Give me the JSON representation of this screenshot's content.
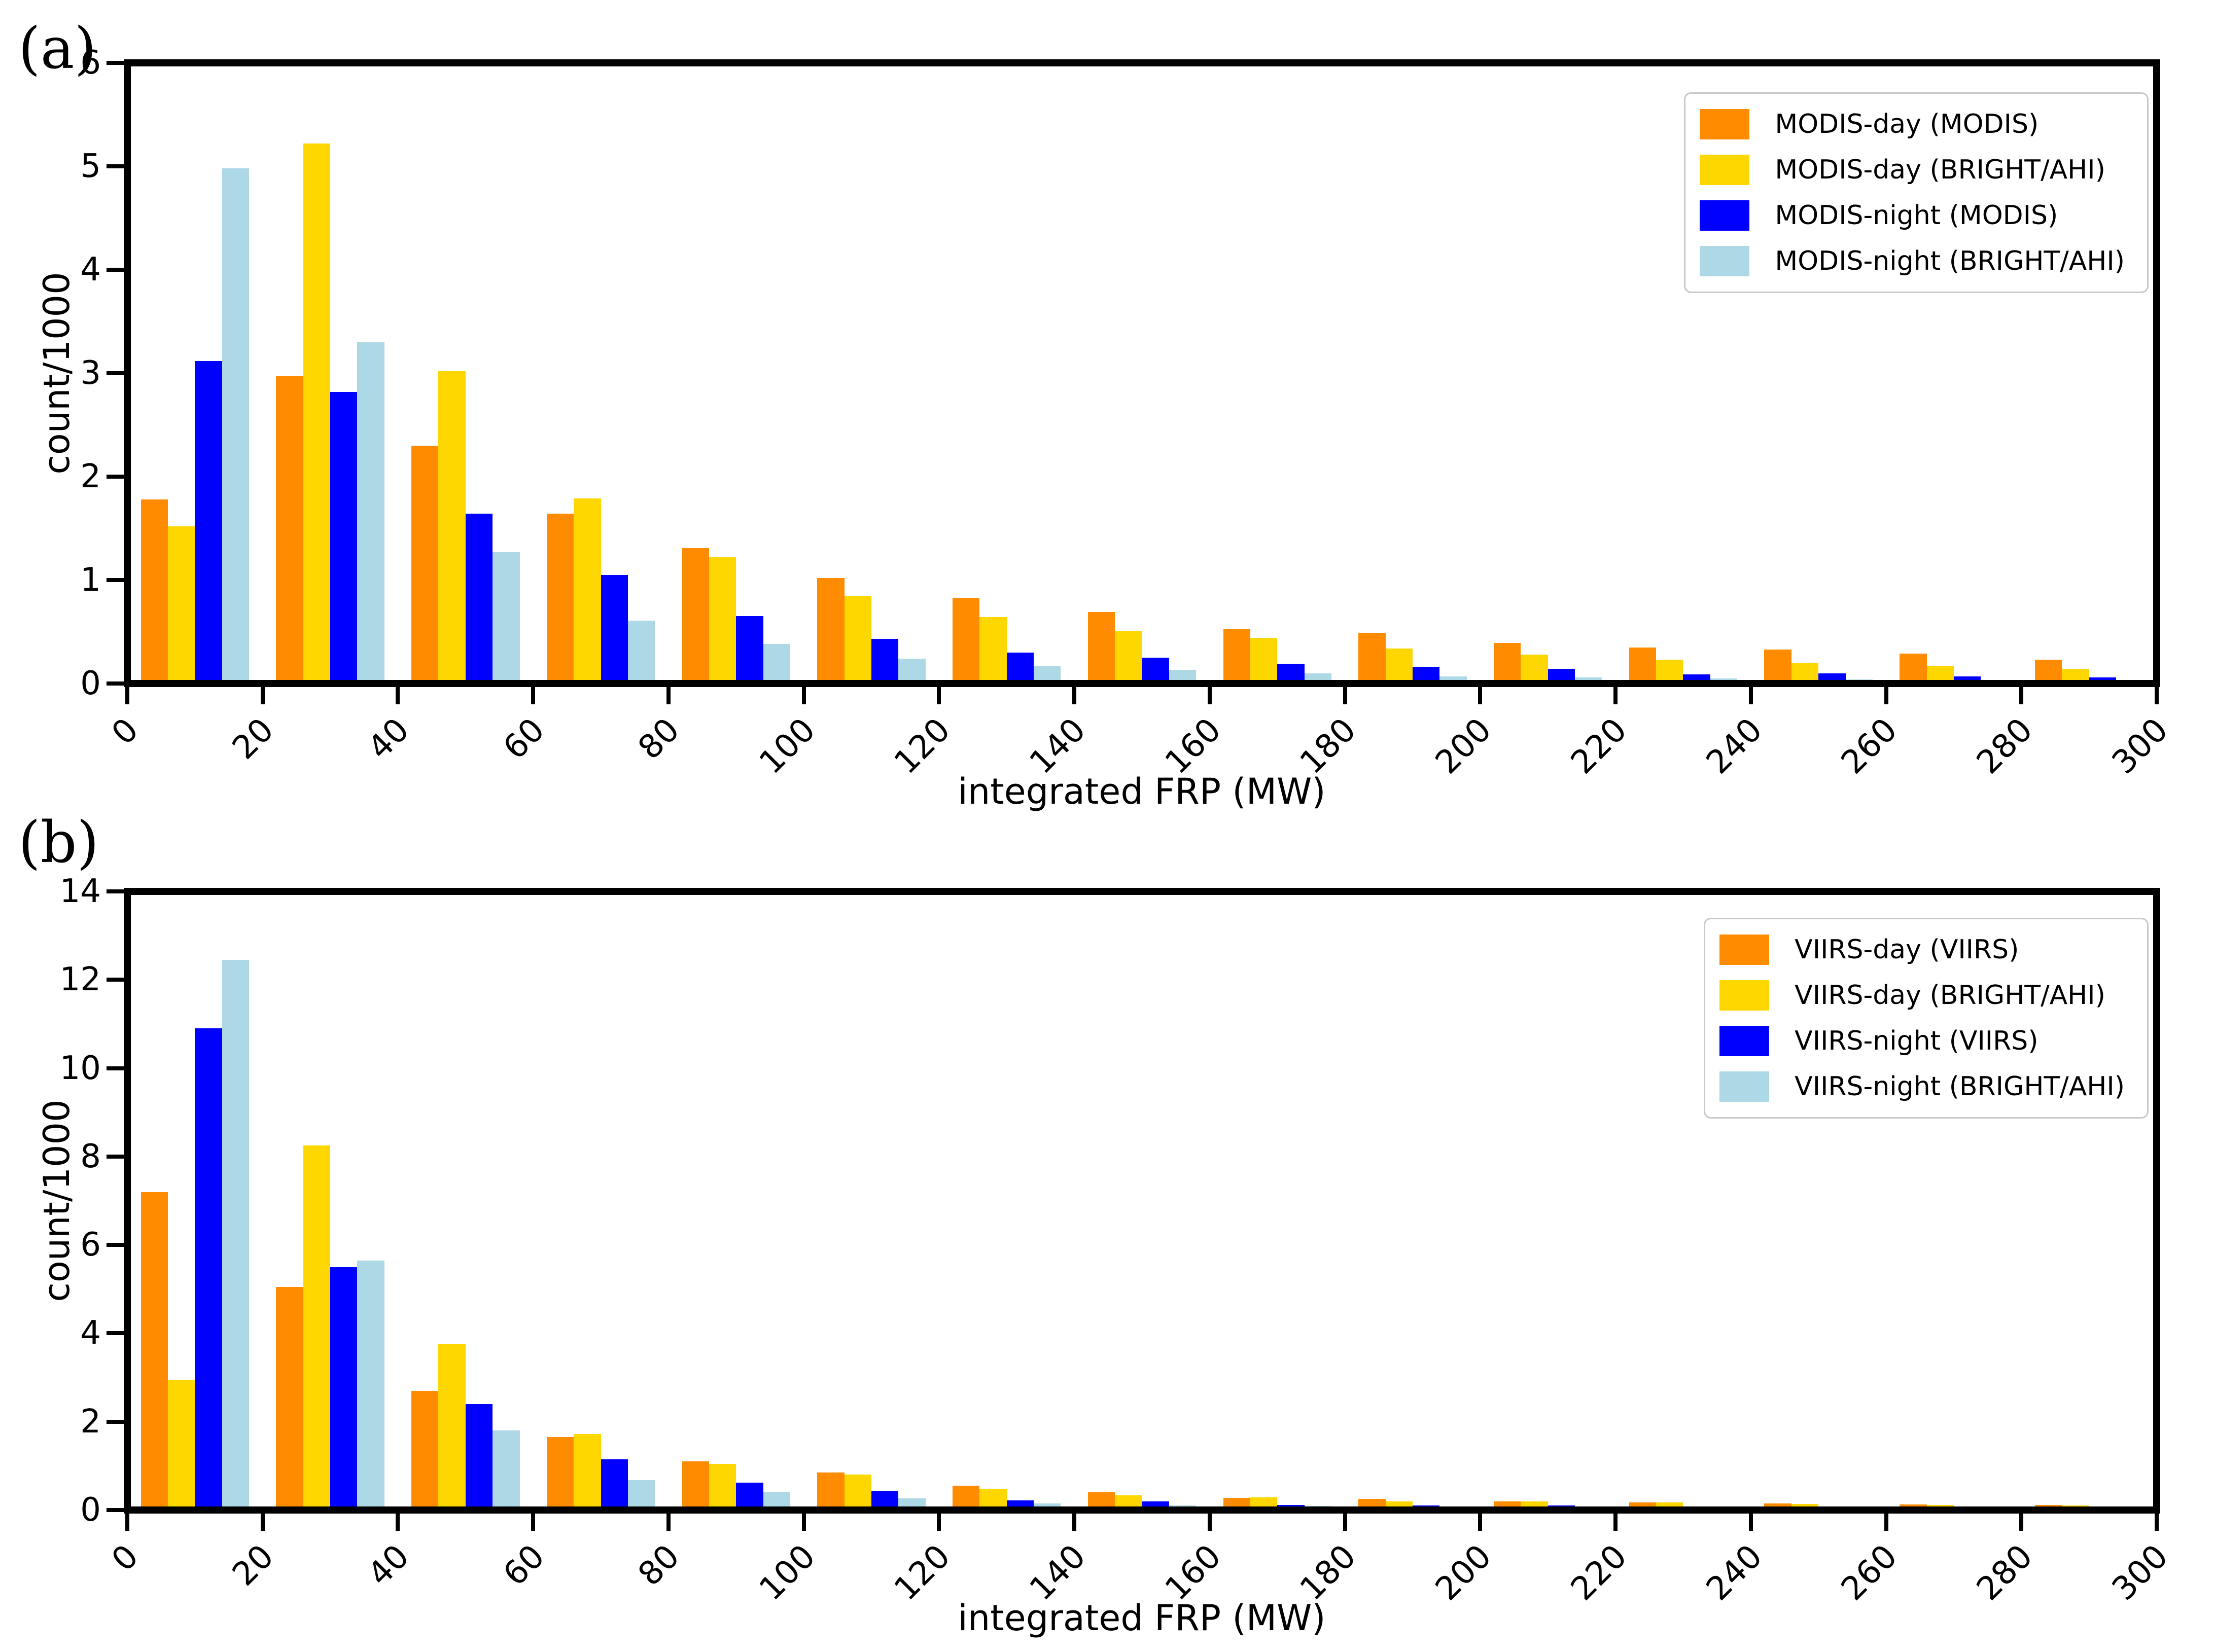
{
  "chart_data": [
    {
      "type": "bar",
      "panel_tag": "(a)",
      "xlabel": "integrated FRP (MW)",
      "ylabel": "count/1000",
      "xlim": [
        0,
        300
      ],
      "ylim": [
        0,
        6
      ],
      "xticks": [
        0,
        20,
        40,
        60,
        80,
        100,
        120,
        140,
        160,
        180,
        200,
        220,
        240,
        260,
        280,
        300
      ],
      "yticks": [
        0,
        1,
        2,
        3,
        4,
        5,
        6
      ],
      "grid": false,
      "legend_position": "upper-right",
      "bin_width_mw": 20,
      "categories": [
        "0-20",
        "20-40",
        "40-60",
        "60-80",
        "80-100",
        "100-120",
        "120-140",
        "140-160",
        "160-180",
        "180-200",
        "200-220",
        "220-240",
        "240-260",
        "260-280",
        "280-300"
      ],
      "series": [
        {
          "name": "MODIS-day (MODIS)",
          "color": "#FF8C00",
          "values": [
            1.78,
            2.97,
            2.3,
            1.64,
            1.31,
            1.02,
            0.83,
            0.69,
            0.53,
            0.49,
            0.39,
            0.35,
            0.33,
            0.29,
            0.23
          ]
        },
        {
          "name": "MODIS-day (BRIGHT/AHI)",
          "color": "#FFD700",
          "values": [
            1.52,
            5.22,
            3.02,
            1.79,
            1.22,
            0.85,
            0.64,
            0.51,
            0.44,
            0.34,
            0.28,
            0.23,
            0.2,
            0.17,
            0.14
          ]
        },
        {
          "name": "MODIS-night (MODIS)",
          "color": "#0000FF",
          "values": [
            3.12,
            2.82,
            1.64,
            1.05,
            0.65,
            0.43,
            0.3,
            0.25,
            0.19,
            0.16,
            0.14,
            0.09,
            0.1,
            0.07,
            0.06
          ]
        },
        {
          "name": "MODIS-night (BRIGHT/AHI)",
          "color": "#ADD8E6",
          "values": [
            4.98,
            3.3,
            1.27,
            0.61,
            0.38,
            0.24,
            0.17,
            0.13,
            0.1,
            0.07,
            0.06,
            0.05,
            0.04,
            0.03,
            0.02
          ]
        }
      ]
    },
    {
      "type": "bar",
      "panel_tag": "(b)",
      "xlabel": "integrated FRP (MW)",
      "ylabel": "count/1000",
      "xlim": [
        0,
        300
      ],
      "ylim": [
        0,
        14
      ],
      "xticks": [
        0,
        20,
        40,
        60,
        80,
        100,
        120,
        140,
        160,
        180,
        200,
        220,
        240,
        260,
        280,
        300
      ],
      "yticks": [
        0,
        2,
        4,
        6,
        8,
        10,
        12,
        14
      ],
      "grid": false,
      "legend_position": "upper-right",
      "bin_width_mw": 20,
      "categories": [
        "0-20",
        "20-40",
        "40-60",
        "60-80",
        "80-100",
        "100-120",
        "120-140",
        "140-160",
        "160-180",
        "180-200",
        "200-220",
        "220-240",
        "240-260",
        "260-280",
        "280-300"
      ],
      "series": [
        {
          "name": "VIIRS-day (VIIRS)",
          "color": "#FF8C00",
          "values": [
            7.2,
            5.05,
            2.7,
            1.65,
            1.1,
            0.85,
            0.55,
            0.4,
            0.28,
            0.25,
            0.2,
            0.17,
            0.15,
            0.13,
            0.12
          ]
        },
        {
          "name": "VIIRS-day (BRIGHT/AHI)",
          "color": "#FFD700",
          "values": [
            2.95,
            8.25,
            3.75,
            1.72,
            1.05,
            0.8,
            0.48,
            0.33,
            0.29,
            0.19,
            0.19,
            0.17,
            0.14,
            0.12,
            0.1
          ]
        },
        {
          "name": "VIIRS-night (VIIRS)",
          "color": "#0000FF",
          "values": [
            10.9,
            5.5,
            2.4,
            1.15,
            0.62,
            0.42,
            0.22,
            0.19,
            0.12,
            0.1,
            0.1,
            0.08,
            0.07,
            0.05,
            0.04
          ]
        },
        {
          "name": "VIIRS-night (BRIGHT/AHI)",
          "color": "#ADD8E6",
          "values": [
            12.45,
            5.65,
            1.8,
            0.68,
            0.4,
            0.26,
            0.15,
            0.1,
            0.09,
            0.07,
            0.06,
            0.05,
            0.04,
            0.03,
            0.02
          ]
        }
      ]
    }
  ]
}
